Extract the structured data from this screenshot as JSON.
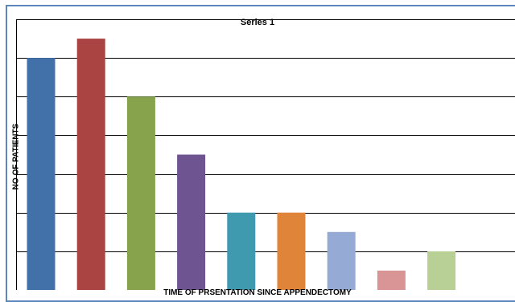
{
  "chart_data": {
    "type": "bar",
    "title": "Series 1",
    "xlabel": "TIME OF PRSENTATION SINCE APPENDECTOMY",
    "ylabel": "NO OF PATIENTS",
    "categories": [
      "",
      "",
      "",
      "",
      "",
      "",
      "",
      "",
      ""
    ],
    "series": [
      {
        "name": "Series 1",
        "values": [
          12,
          13,
          10,
          7,
          4,
          4,
          3,
          1,
          2
        ]
      }
    ],
    "ylim": [
      0,
      14
    ],
    "grid": true,
    "colors": [
      "#4270a8",
      "#a94442",
      "#87a34c",
      "#6e5591",
      "#3f9ab0",
      "#df8439",
      "#95abd6",
      "#d99596",
      "#b8d095"
    ]
  }
}
